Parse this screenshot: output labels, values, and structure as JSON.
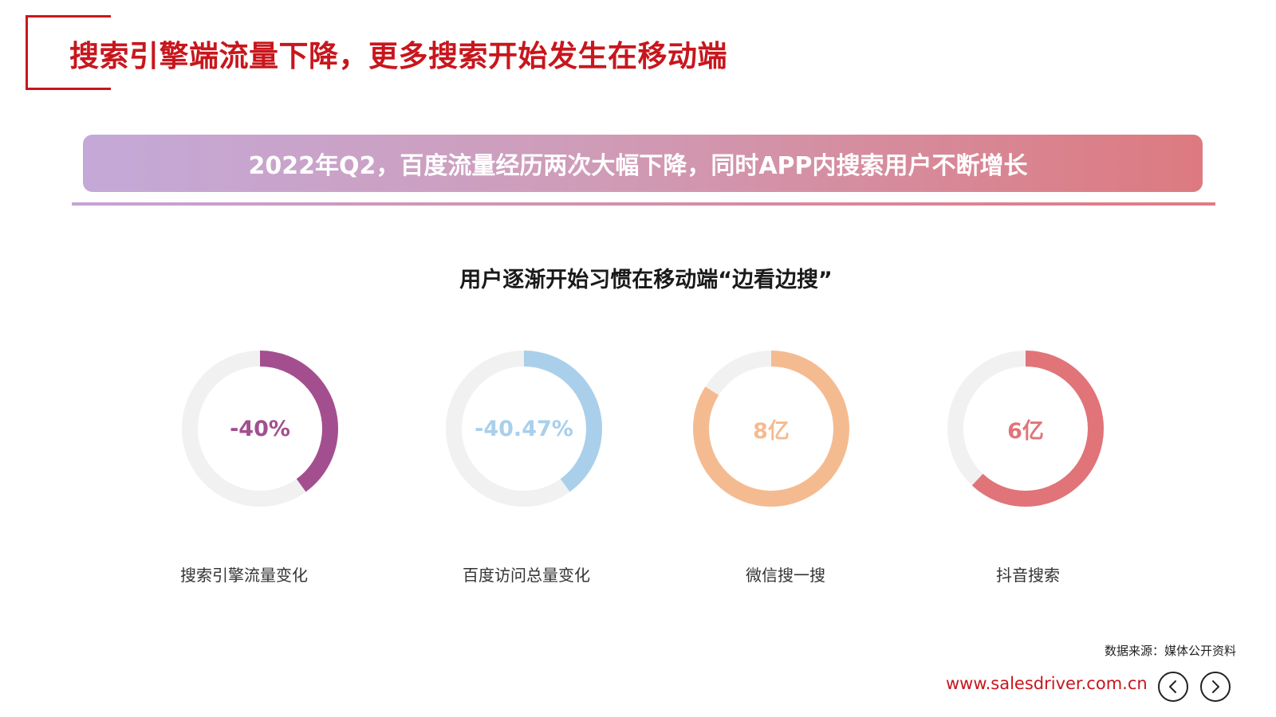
{
  "page": {
    "title": "搜索引擎端流量下降，更多搜索开始发生在移动端",
    "banner": "2022年Q2，百度流量经历两次大幅下降，同时APP内搜索用户不断增长",
    "subtitle": "用户逐渐开始习惯在移动端“边看边搜”",
    "source": "数据来源：媒体公开资料",
    "website": "www.salesdriver.com.cn",
    "accent_color": "#c8161d"
  },
  "metrics": [
    {
      "value_text": "-40%",
      "label": "搜索引擎流量变化",
      "fill": 0.4,
      "color": "#a34f8f"
    },
    {
      "value_text": "-40.47%",
      "label": "百度访问总量变化",
      "fill": 0.4,
      "color": "#a9cfeb"
    },
    {
      "value_text": "8亿",
      "label": "微信搜一搜",
      "fill": 0.84,
      "color": "#f5bb90"
    },
    {
      "value_text": "6亿",
      "label": "抖音搜索",
      "fill": 0.62,
      "color": "#e07478"
    }
  ],
  "nav": {
    "prev_icon": "chevron-left-icon",
    "next_icon": "chevron-right-icon"
  }
}
